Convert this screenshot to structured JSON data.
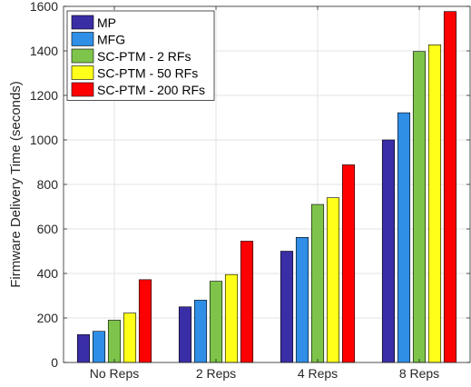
{
  "chart_data": {
    "type": "bar",
    "title": "",
    "xlabel": "",
    "ylabel": "Firmware Delivery Time (seconds)",
    "ylim": [
      0,
      1600
    ],
    "yticks": [
      0,
      200,
      400,
      600,
      800,
      1000,
      1200,
      1400,
      1600
    ],
    "grid": true,
    "legend_position": "top-left",
    "categories": [
      "No Reps",
      "2 Reps",
      "4 Reps",
      "8 Reps"
    ],
    "series": [
      {
        "name": "MP",
        "color": "#3a2ea6",
        "values": [
          125,
          250,
          500,
          1000
        ]
      },
      {
        "name": "MFG",
        "color": "#2f8ee6",
        "values": [
          140,
          280,
          562,
          1122
        ]
      },
      {
        "name": "SC-PTM - 2 RFs",
        "color": "#7ec44a",
        "values": [
          190,
          365,
          710,
          1397
        ]
      },
      {
        "name": "SC-PTM - 50 RFs",
        "color": "#ffff1a",
        "values": [
          222,
          395,
          740,
          1427
        ]
      },
      {
        "name": "SC-PTM - 200 RFs",
        "color": "#ff0000",
        "values": [
          372,
          545,
          888,
          1577
        ]
      }
    ]
  }
}
